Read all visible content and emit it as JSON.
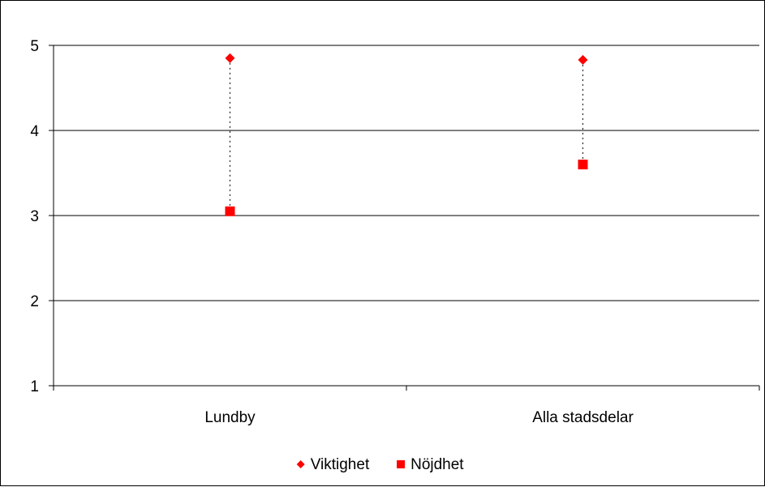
{
  "chart_data": {
    "type": "scatter",
    "title": "",
    "xlabel": "",
    "ylabel": "",
    "categories": [
      "Lundby",
      "Alla stadsdelar"
    ],
    "series": [
      {
        "name": "Viktighet",
        "values": [
          4.85,
          4.83
        ],
        "color": "#ff0000",
        "marker": "diamond"
      },
      {
        "name": "Nöjdhet",
        "values": [
          3.05,
          3.6
        ],
        "color": "#ff0000",
        "marker": "square"
      }
    ],
    "ylim": [
      1,
      5
    ],
    "yticks": [
      "1",
      "2",
      "3",
      "4",
      "5"
    ],
    "grid": "horizontal",
    "connector": "dotted",
    "legend_position": "bottom"
  }
}
